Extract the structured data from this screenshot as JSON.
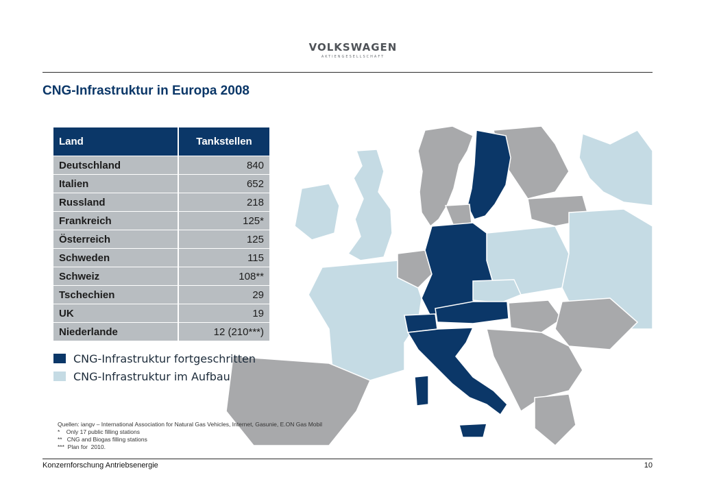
{
  "header": {
    "logo_main": "VOLKSWAGEN",
    "logo_sub": "AKTIENGESELLSCHAFT"
  },
  "title": "CNG-Infrastruktur in Europa 2008",
  "table": {
    "headers": [
      "Land",
      "Tankstellen"
    ],
    "rows": [
      {
        "land": "Deutschland",
        "value": "840"
      },
      {
        "land": "Italien",
        "value": "652"
      },
      {
        "land": "Russland",
        "value": "218"
      },
      {
        "land": "Frankreich",
        "value": "125*"
      },
      {
        "land": "Österreich",
        "value": "125"
      },
      {
        "land": "Schweden",
        "value": "115"
      },
      {
        "land": "Schweiz",
        "value": "108**"
      },
      {
        "land": "Tschechien",
        "value": "29"
      },
      {
        "land": "UK",
        "value": "19"
      },
      {
        "land": "Niederlande",
        "value": "12 (210***)"
      }
    ]
  },
  "legend": {
    "items": [
      {
        "label": "CNG-Infrastruktur fortgeschritten",
        "color": "#0b3768"
      },
      {
        "label": "CNG-Infrastruktur im Aufbau",
        "color": "#c5dbe4"
      }
    ]
  },
  "sources": {
    "lines": [
      "Quellen: iangv – International Association for Natural Gas Vehicles, Internet, Gasunie, E.ON Gas Mobil",
      "*    Only 17 public filling stations",
      "**   CNG and Biogas filling stations",
      "***  Plan for  2010."
    ]
  },
  "footer": {
    "left": "Konzernforschung Antriebsenergie",
    "page_number": "10"
  },
  "map_colors": {
    "advanced": "#0b3768",
    "building": "#c5dbe4",
    "other": "#a8a9ab"
  }
}
